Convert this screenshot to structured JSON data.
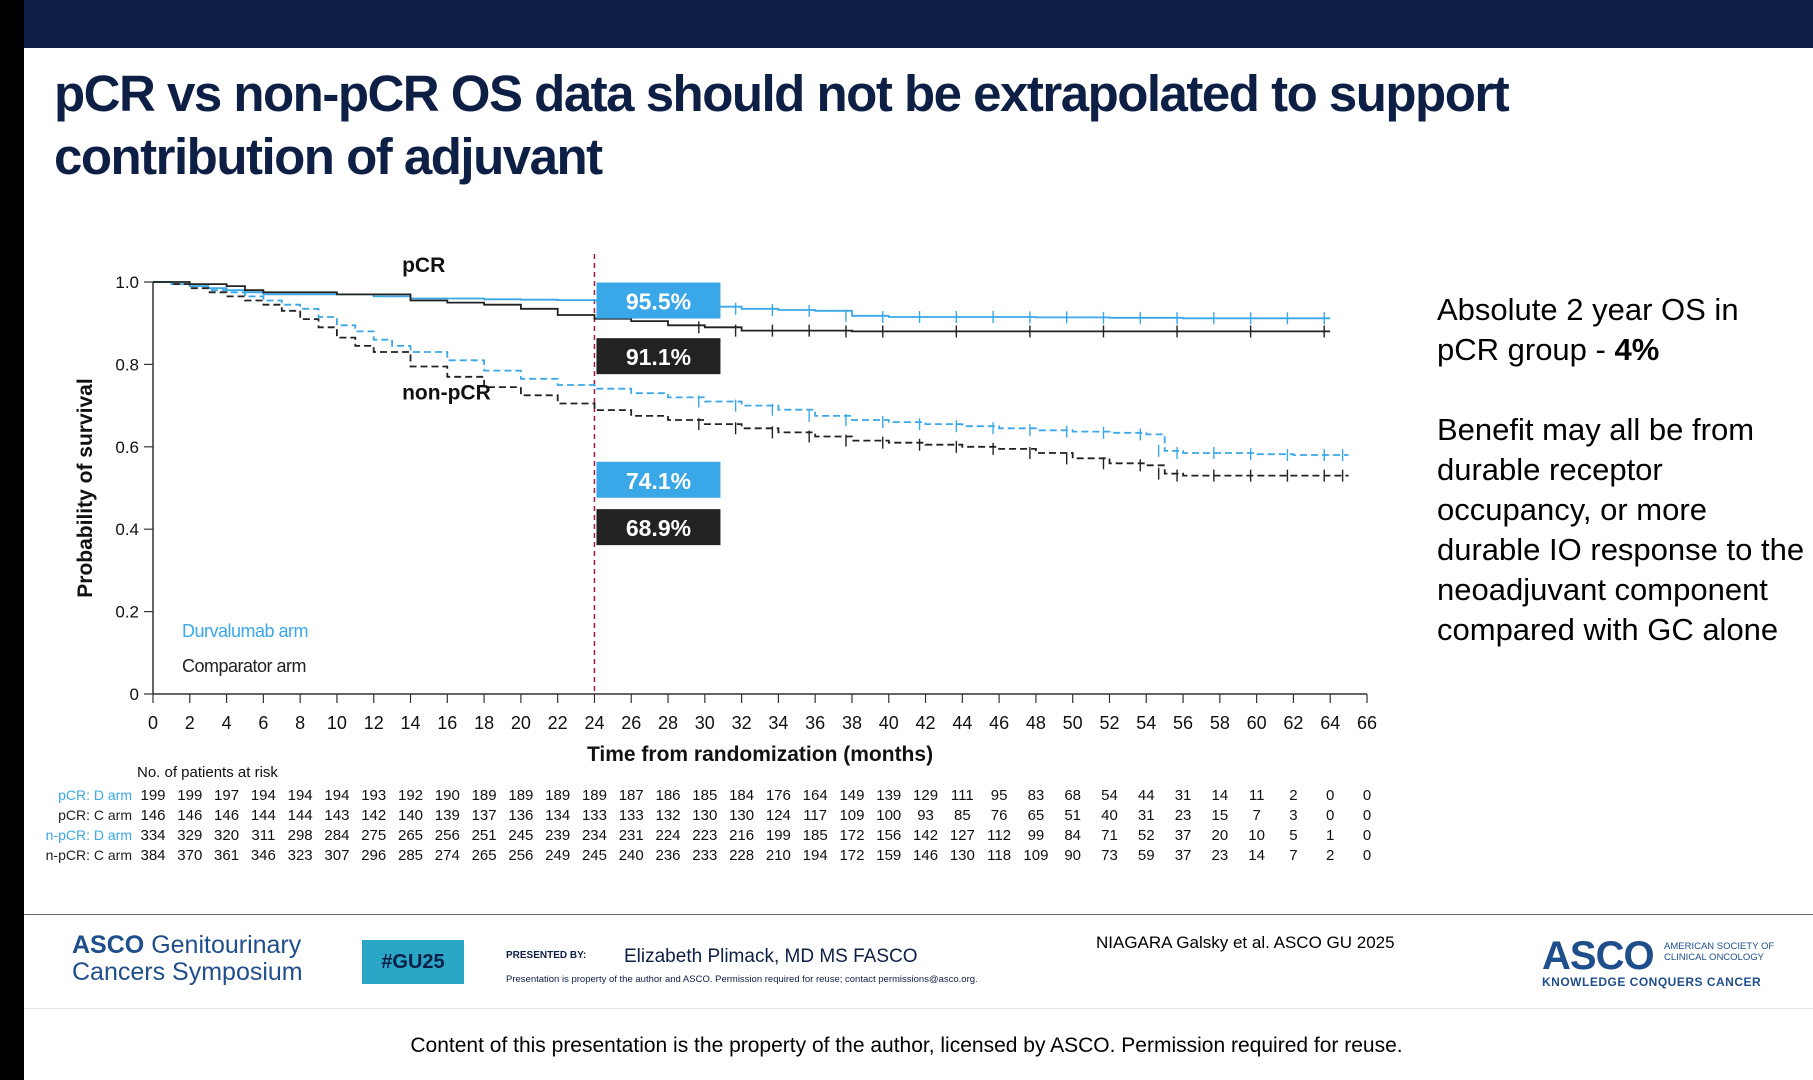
{
  "slide": {
    "title": "pCR vs non-pCR OS data should not be extrapolated to support contribution of adjuvant",
    "side_text": [
      {
        "text": "Absolute 2 year OS in pCR group - ",
        "bold": "4%"
      },
      {
        "text": "Benefit may all be from durable receptor occupancy, or more durable IO response to the neoadjuvant component compared with GC alone",
        "bold": ""
      }
    ]
  },
  "chart_data": {
    "type": "line",
    "title": "",
    "xlabel": "Time from randomization (months)",
    "ylabel": "Probability of survival",
    "xlim": [
      0,
      66
    ],
    "ylim": [
      0,
      1.0
    ],
    "x_ticks": [
      0,
      2,
      4,
      6,
      8,
      10,
      12,
      14,
      16,
      18,
      20,
      22,
      24,
      26,
      28,
      30,
      32,
      34,
      36,
      38,
      40,
      42,
      44,
      46,
      48,
      50,
      52,
      54,
      56,
      58,
      60,
      62,
      64,
      66
    ],
    "y_ticks": [
      {
        "value": 0,
        "label": "0"
      },
      {
        "value": 0.2,
        "label": "0.2"
      },
      {
        "value": 0.4,
        "label": "0.4"
      },
      {
        "value": 0.6,
        "label": "0.6"
      },
      {
        "value": 0.8,
        "label": "0.8"
      },
      {
        "value": 1.0,
        "label": "1.0"
      }
    ],
    "grid": false,
    "reference_line_x": 24,
    "group_labels": [
      {
        "text": "pCR",
        "x": 13,
        "y": 1.02
      },
      {
        "text": "non-pCR",
        "x": 13,
        "y": 0.71
      }
    ],
    "value_labels": [
      {
        "text": "95.5%",
        "x": 24,
        "y": 0.955,
        "color": "#3aa8e8"
      },
      {
        "text": "91.1%",
        "x": 24,
        "y": 0.82,
        "color": "#222222"
      },
      {
        "text": "74.1%",
        "x": 24,
        "y": 0.52,
        "color": "#3aa8e8"
      },
      {
        "text": "68.9%",
        "x": 24,
        "y": 0.405,
        "color": "#222222"
      }
    ],
    "legend": {
      "position": "bottom-left",
      "entries": [
        {
          "name": "Durvalumab arm",
          "color": "#3aa8e8"
        },
        {
          "name": "Comparator arm",
          "color": "#222222"
        }
      ]
    },
    "series": [
      {
        "name": "pCR: D arm",
        "color": "#3aa8e8",
        "dashed": false,
        "x": [
          0,
          1,
          2,
          3,
          4,
          5,
          6,
          8,
          10,
          12,
          14,
          16,
          18,
          20,
          22,
          24,
          26,
          28,
          30,
          32,
          34,
          36,
          38,
          40,
          42,
          44,
          46,
          48,
          50,
          52,
          54,
          56,
          58,
          60,
          62,
          64
        ],
        "y": [
          1.0,
          0.995,
          0.99,
          0.985,
          0.98,
          0.975,
          0.97,
          0.97,
          0.97,
          0.965,
          0.96,
          0.96,
          0.958,
          0.957,
          0.956,
          0.955,
          0.952,
          0.948,
          0.94,
          0.935,
          0.932,
          0.93,
          0.918,
          0.915,
          0.915,
          0.915,
          0.915,
          0.914,
          0.914,
          0.913,
          0.913,
          0.912,
          0.912,
          0.912,
          0.912,
          0.912
        ]
      },
      {
        "name": "pCR: C arm",
        "color": "#222222",
        "dashed": false,
        "x": [
          0,
          2,
          4,
          5,
          6,
          8,
          10,
          12,
          14,
          16,
          18,
          20,
          22,
          24,
          26,
          28,
          30,
          32,
          34,
          36,
          38,
          40,
          44,
          48,
          52,
          56,
          60,
          64
        ],
        "y": [
          1.0,
          0.995,
          0.99,
          0.98,
          0.975,
          0.975,
          0.97,
          0.97,
          0.955,
          0.95,
          0.945,
          0.935,
          0.92,
          0.911,
          0.905,
          0.895,
          0.89,
          0.882,
          0.882,
          0.882,
          0.88,
          0.88,
          0.88,
          0.88,
          0.88,
          0.88,
          0.88,
          0.88
        ]
      },
      {
        "name": "non-pCR: D arm",
        "color": "#3aa8e8",
        "dashed": true,
        "x": [
          0,
          1,
          2,
          3,
          4,
          5,
          6,
          7,
          8,
          9,
          10,
          11,
          12,
          13,
          14,
          16,
          18,
          20,
          22,
          24,
          26,
          28,
          30,
          32,
          34,
          36,
          38,
          40,
          42,
          44,
          46,
          48,
          50,
          52,
          54,
          55,
          56,
          58,
          60,
          62,
          64,
          65
        ],
        "y": [
          1.0,
          0.995,
          0.99,
          0.98,
          0.975,
          0.965,
          0.955,
          0.945,
          0.935,
          0.915,
          0.895,
          0.88,
          0.86,
          0.845,
          0.83,
          0.81,
          0.785,
          0.765,
          0.75,
          0.741,
          0.73,
          0.72,
          0.71,
          0.7,
          0.69,
          0.675,
          0.665,
          0.66,
          0.655,
          0.65,
          0.645,
          0.64,
          0.637,
          0.634,
          0.63,
          0.59,
          0.585,
          0.585,
          0.582,
          0.58,
          0.58,
          0.58
        ]
      },
      {
        "name": "non-pCR: C arm",
        "color": "#222222",
        "dashed": true,
        "x": [
          0,
          1,
          2,
          3,
          4,
          5,
          6,
          7,
          8,
          9,
          10,
          11,
          12,
          14,
          16,
          18,
          20,
          22,
          24,
          26,
          28,
          30,
          32,
          34,
          36,
          38,
          40,
          42,
          44,
          46,
          48,
          50,
          52,
          54,
          55,
          56,
          58,
          60,
          62,
          64,
          65
        ],
        "y": [
          1.0,
          0.995,
          0.985,
          0.975,
          0.965,
          0.955,
          0.945,
          0.93,
          0.91,
          0.89,
          0.865,
          0.845,
          0.83,
          0.795,
          0.77,
          0.745,
          0.725,
          0.705,
          0.689,
          0.675,
          0.665,
          0.655,
          0.645,
          0.635,
          0.625,
          0.615,
          0.61,
          0.605,
          0.6,
          0.595,
          0.585,
          0.572,
          0.56,
          0.555,
          0.535,
          0.53,
          0.53,
          0.53,
          0.53,
          0.53,
          0.53
        ]
      }
    ],
    "risk_table": {
      "title": "No. of patients at risk",
      "x_months": [
        0,
        2,
        4,
        6,
        8,
        10,
        12,
        14,
        16,
        18,
        20,
        22,
        24,
        26,
        28,
        30,
        32,
        34,
        36,
        38,
        40,
        42,
        44,
        46,
        48,
        50,
        52,
        54,
        56,
        58,
        60,
        62,
        64,
        66
      ],
      "rows": [
        {
          "label": "pCR: D arm",
          "color": "#3aa8e8",
          "values": [
            199,
            199,
            197,
            194,
            194,
            194,
            193,
            192,
            190,
            189,
            189,
            189,
            189,
            187,
            186,
            185,
            184,
            176,
            164,
            149,
            139,
            129,
            111,
            95,
            83,
            68,
            54,
            44,
            31,
            14,
            11,
            2,
            0,
            0
          ]
        },
        {
          "label": "pCR: C arm",
          "color": "#222222",
          "values": [
            146,
            146,
            146,
            144,
            144,
            143,
            142,
            140,
            139,
            137,
            136,
            134,
            133,
            133,
            132,
            130,
            130,
            124,
            117,
            109,
            100,
            93,
            85,
            76,
            65,
            51,
            40,
            31,
            23,
            15,
            7,
            3,
            0,
            0
          ]
        },
        {
          "label": "n-pCR: D arm",
          "color": "#3aa8e8",
          "values": [
            334,
            329,
            320,
            311,
            298,
            284,
            275,
            265,
            256,
            251,
            245,
            239,
            234,
            231,
            224,
            223,
            216,
            199,
            185,
            172,
            156,
            142,
            127,
            112,
            99,
            84,
            71,
            52,
            37,
            20,
            10,
            5,
            1,
            0
          ]
        },
        {
          "label": "n-pCR: C arm",
          "color": "#222222",
          "values": [
            384,
            370,
            361,
            346,
            323,
            307,
            296,
            285,
            274,
            265,
            256,
            249,
            245,
            240,
            236,
            233,
            228,
            210,
            194,
            172,
            159,
            146,
            130,
            118,
            109,
            90,
            73,
            59,
            37,
            23,
            14,
            7,
            2,
            0
          ]
        }
      ]
    }
  },
  "footer": {
    "symposium_brand": "ASCO",
    "symposium_name_1": "Genitourinary",
    "symposium_name_2": "Cancers Symposium",
    "hashtag": "#GU25",
    "presented_by_label": "PRESENTED BY:",
    "presenter": "Elizabeth Plimack, MD MS FASCO",
    "property_note": "Presentation is property of the author and ASCO. Permission required for reuse; contact permissions@asco.org.",
    "citation": "NIAGARA Galsky et al. ASCO GU 2025",
    "asco_logo_text": "ASCO",
    "asco_society_text": "AMERICAN SOCIETY OF CLINICAL ONCOLOGY",
    "asco_tagline": "KNOWLEDGE CONQUERS CANCER",
    "copyright": "Content of this presentation is the property of the author, licensed by ASCO. Permission required for reuse."
  }
}
